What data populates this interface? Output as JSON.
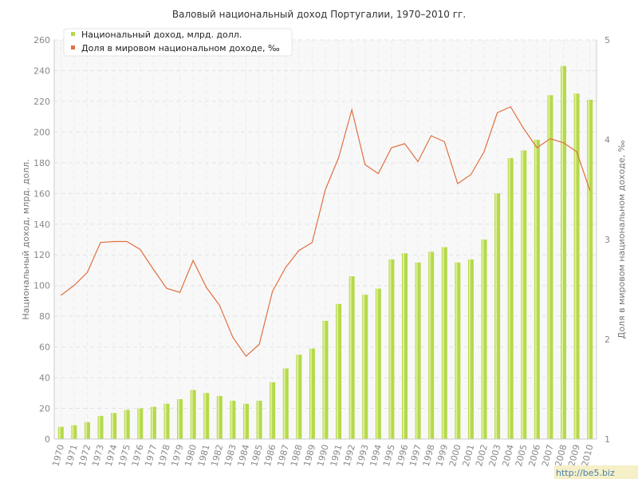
{
  "chart_data": {
    "type": "bar",
    "title": "Валовый национальный доход Португалии, 1970–2010 гг.",
    "ylabel": "Национальный доход, млрд. долл.",
    "y2label": "Доля в мировом национальном доходе, ‰",
    "ylim": [
      0,
      260
    ],
    "y2lim": [
      1,
      5
    ],
    "yticks": [
      "0",
      "20",
      "40",
      "60",
      "80",
      "100",
      "120",
      "140",
      "160",
      "180",
      "200",
      "220",
      "240",
      "260"
    ],
    "y2ticks": [
      "1",
      "2",
      "3",
      "4",
      "5"
    ],
    "legend_placement": "top-left",
    "grid": true,
    "categories": [
      "1970",
      "1971",
      "1972",
      "1973",
      "1974",
      "1975",
      "1976",
      "1977",
      "1978",
      "1979",
      "1980",
      "1981",
      "1982",
      "1983",
      "1984",
      "1985",
      "1986",
      "1987",
      "1988",
      "1989",
      "1990",
      "1991",
      "1992",
      "1993",
      "1994",
      "1995",
      "1996",
      "1997",
      "1998",
      "1999",
      "2000",
      "2001",
      "2002",
      "2003",
      "2004",
      "2005",
      "2006",
      "2007",
      "2008",
      "2009",
      "2010"
    ],
    "series": [
      {
        "name": "Национальный доход, млрд. долл.",
        "type": "bar",
        "axis": "left",
        "color": "#b5d94a",
        "values": [
          8,
          9,
          11,
          15,
          17,
          19,
          20,
          21,
          23,
          26,
          32,
          30,
          28,
          25,
          23,
          25,
          37,
          46,
          55,
          59,
          77,
          88,
          106,
          94,
          98,
          117,
          121,
          115,
          122,
          125,
          115,
          117,
          130,
          160,
          183,
          188,
          195,
          224,
          243,
          225,
          221
        ]
      },
      {
        "name": "Доля в мировом национальном доходе, ‰",
        "type": "line",
        "axis": "right",
        "color": "#e07040",
        "values": [
          2.44,
          2.54,
          2.67,
          2.97,
          2.98,
          2.98,
          2.9,
          2.7,
          2.51,
          2.47,
          2.79,
          2.52,
          2.34,
          2.02,
          1.83,
          1.95,
          2.48,
          2.72,
          2.89,
          2.97,
          3.5,
          3.82,
          4.3,
          3.75,
          3.66,
          3.92,
          3.96,
          3.78,
          4.04,
          3.98,
          3.56,
          3.65,
          3.88,
          4.27,
          4.33,
          4.11,
          3.92,
          4.01,
          3.97,
          3.88,
          3.49
        ]
      }
    ]
  },
  "watermark": "http://be5.biz"
}
